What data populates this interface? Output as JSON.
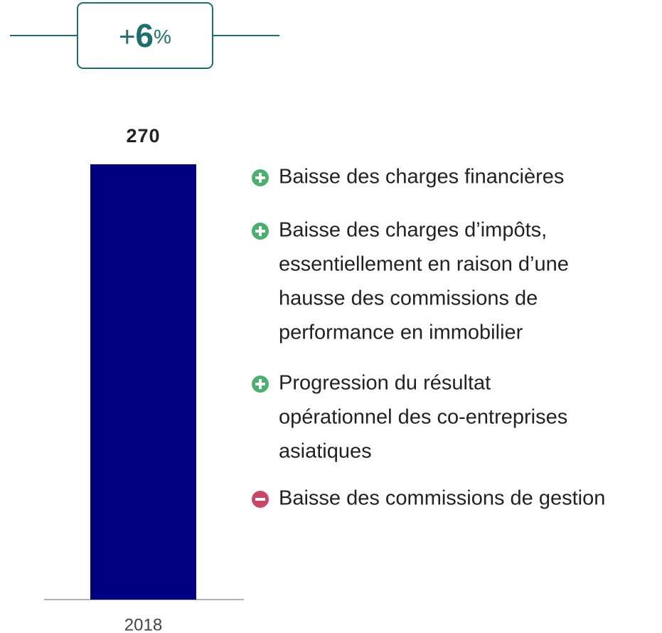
{
  "chart_data": {
    "type": "bar",
    "change": {
      "prefix": "+",
      "number": 6,
      "suffix": "%"
    },
    "categories": [
      "2018"
    ],
    "values": [
      270
    ],
    "color": "#000080",
    "ylim": [
      0,
      270
    ],
    "items": [
      {
        "icon": "plus",
        "lines": [
          "Baisse des charges financières"
        ]
      },
      {
        "icon": "plus",
        "lines": [
          "Baisse des charges d’impôts,",
          "essentiellement en raison d’une",
          "hausse des commissions de",
          "performance en immobilier"
        ]
      },
      {
        "icon": "plus",
        "lines": [
          "Progression du résultat",
          "opérationnel des co-entreprises",
          "asiatiques"
        ]
      },
      {
        "icon": "minus",
        "lines": [
          "Baisse des commissions de gestion"
        ]
      }
    ]
  }
}
